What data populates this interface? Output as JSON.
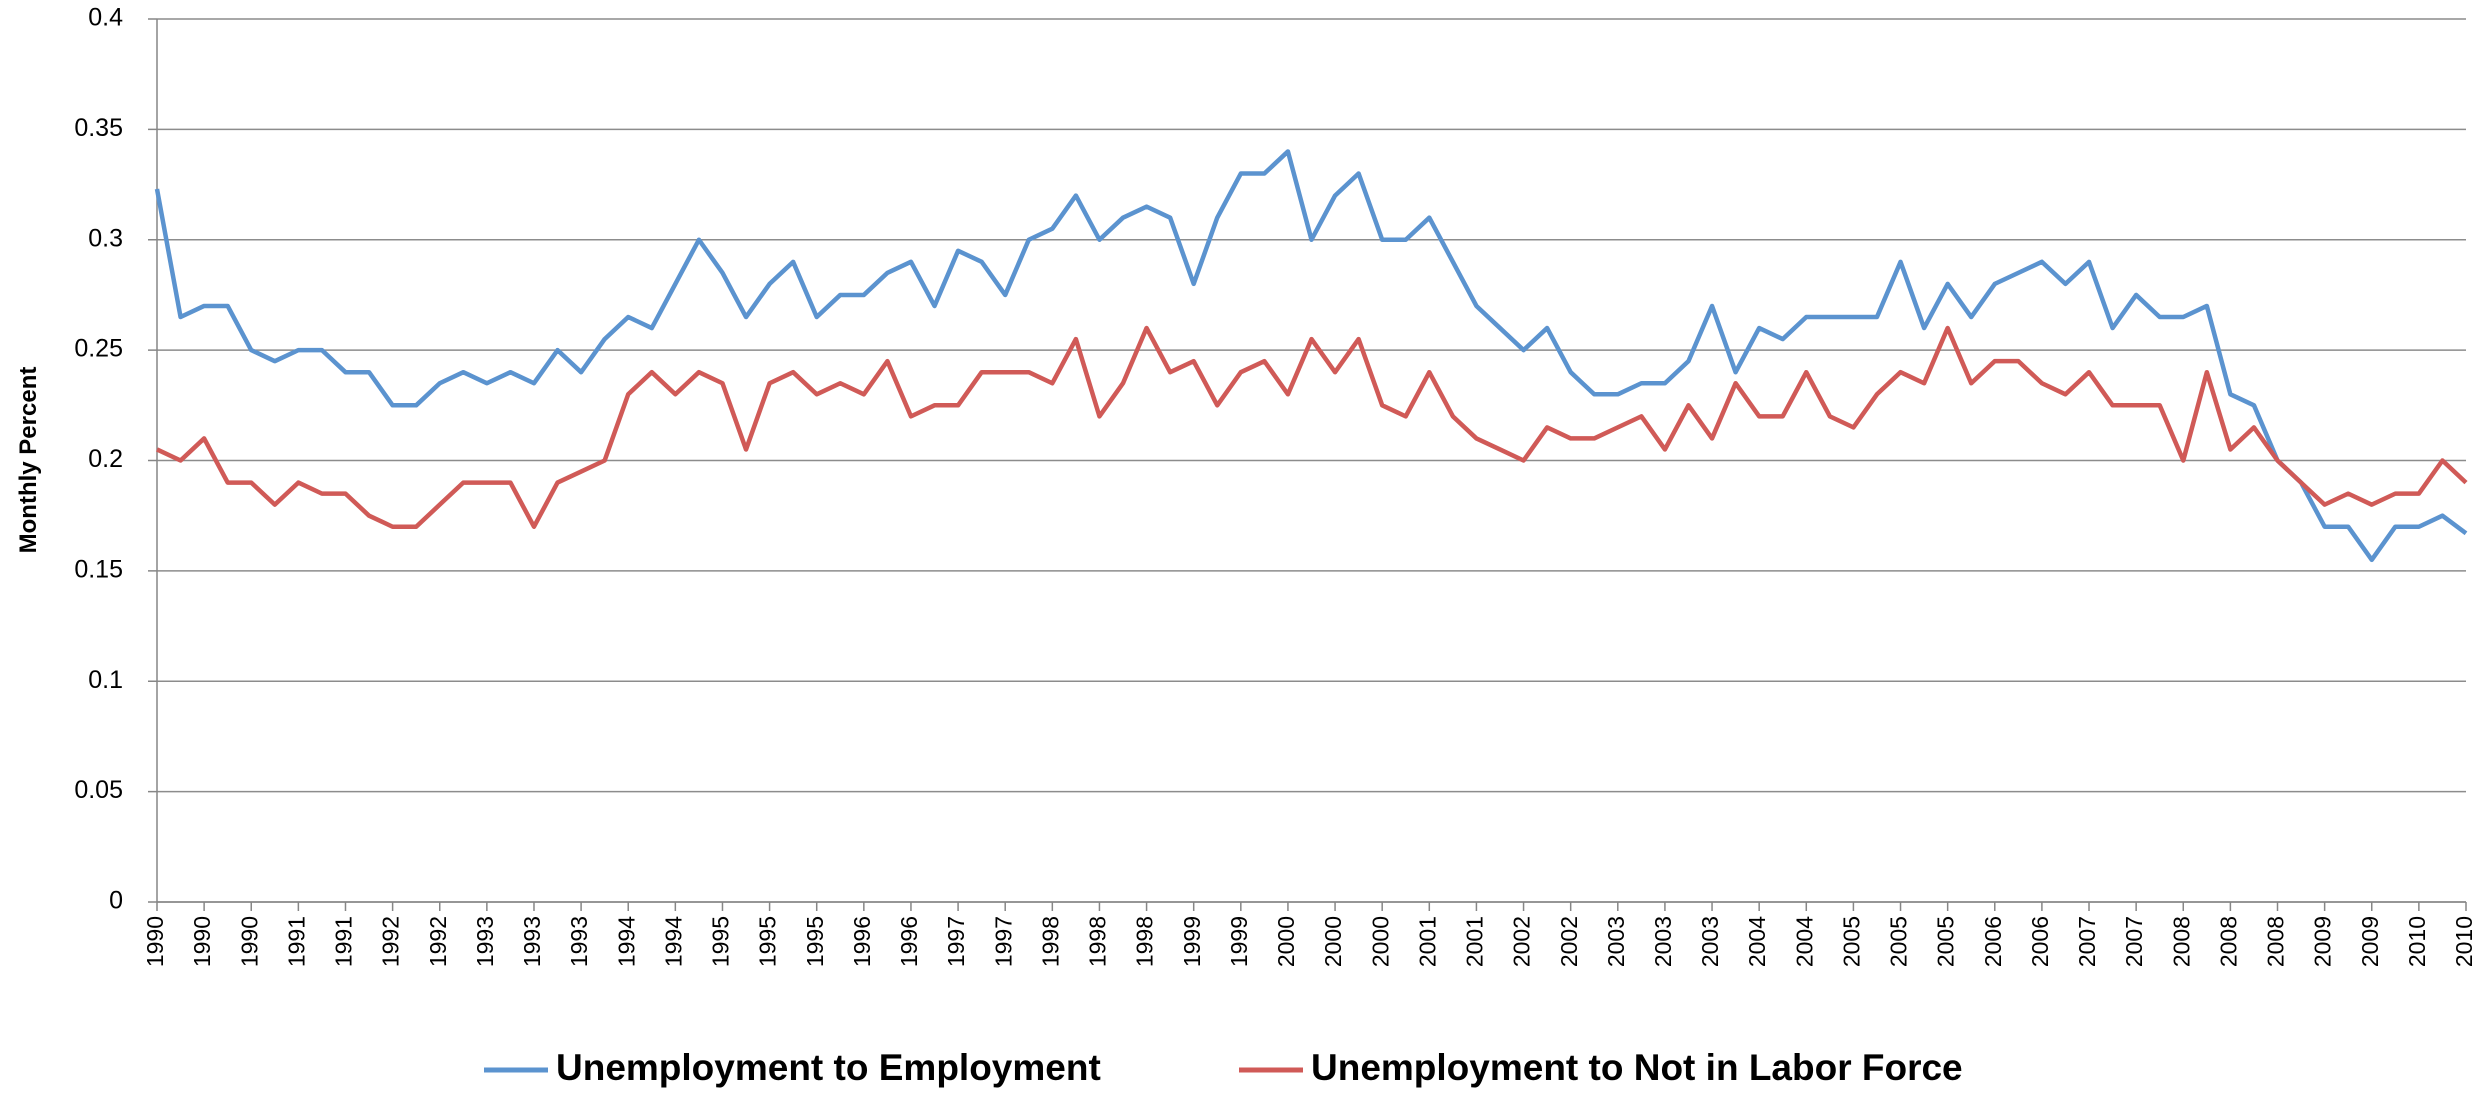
{
  "chart_data": {
    "type": "line",
    "y_axis_label": "Monthly Percent",
    "ylim": [
      0,
      0.4
    ],
    "yticks": [
      0,
      0.05,
      0.1,
      0.15,
      0.2,
      0.25,
      0.3,
      0.35,
      0.4
    ],
    "grid": true,
    "legend": "bottom",
    "categories": [
      "1990",
      null,
      "1990",
      null,
      "1990",
      null,
      "1991",
      null,
      "1991",
      null,
      "1992",
      null,
      "1992",
      null,
      "1993",
      null,
      "1993",
      null,
      "1993",
      null,
      "1994",
      null,
      "1994",
      null,
      "1995",
      null,
      "1995",
      null,
      "1995",
      null,
      "1996",
      null,
      "1996",
      null,
      "1997",
      null,
      "1997",
      null,
      "1998",
      null,
      "1998",
      null,
      "1998",
      null,
      "1999",
      null,
      "1999",
      null,
      "2000",
      null,
      "2000",
      null,
      "2000",
      null,
      "2001",
      null,
      "2001",
      null,
      "2002",
      null,
      "2002",
      null,
      "2003",
      null,
      "2003",
      null,
      "2003",
      null,
      "2004",
      null,
      "2004",
      null,
      "2005",
      null,
      "2005",
      null,
      "2005",
      null,
      "2006",
      null,
      "2006",
      null,
      "2007",
      null,
      "2007",
      null,
      "2008",
      null,
      "2008",
      null,
      "2008",
      null,
      "2009",
      null,
      "2009",
      null,
      "2010",
      null,
      "2010"
    ],
    "series": [
      {
        "name": "Unemployment to Employment",
        "color": "#5b93cf",
        "values": [
          0.323,
          0.265,
          0.27,
          0.27,
          0.25,
          0.245,
          0.25,
          0.25,
          0.24,
          0.24,
          0.225,
          0.225,
          0.235,
          0.24,
          0.235,
          0.24,
          0.235,
          0.25,
          0.24,
          0.255,
          0.265,
          0.26,
          0.28,
          0.3,
          0.285,
          0.265,
          0.28,
          0.29,
          0.265,
          0.275,
          0.275,
          0.285,
          0.29,
          0.27,
          0.295,
          0.29,
          0.275,
          0.3,
          0.305,
          0.32,
          0.3,
          0.31,
          0.315,
          0.31,
          0.28,
          0.31,
          0.33,
          0.33,
          0.34,
          0.3,
          0.32,
          0.33,
          0.3,
          0.3,
          0.31,
          0.29,
          0.27,
          0.26,
          0.25,
          0.26,
          0.24,
          0.23,
          0.23,
          0.235,
          0.235,
          0.245,
          0.27,
          0.24,
          0.26,
          0.255,
          0.265,
          0.265,
          0.265,
          0.265,
          0.29,
          0.26,
          0.28,
          0.265,
          0.28,
          0.285,
          0.29,
          0.28,
          0.29,
          0.26,
          0.275,
          0.265,
          0.265,
          0.27,
          0.23,
          0.225,
          0.2,
          0.19,
          0.17,
          0.17,
          0.155,
          0.17,
          0.17,
          0.175,
          0.167
        ]
      },
      {
        "name": "Unemployment to Not in Labor Force",
        "color": "#d05a57",
        "values": [
          0.205,
          0.2,
          0.21,
          0.19,
          0.19,
          0.18,
          0.19,
          0.185,
          0.185,
          0.175,
          0.17,
          0.17,
          0.18,
          0.19,
          0.19,
          0.19,
          0.17,
          0.19,
          0.195,
          0.2,
          0.23,
          0.24,
          0.23,
          0.24,
          0.235,
          0.205,
          0.235,
          0.24,
          0.23,
          0.235,
          0.23,
          0.245,
          0.22,
          0.225,
          0.225,
          0.24,
          0.24,
          0.24,
          0.235,
          0.255,
          0.22,
          0.235,
          0.26,
          0.24,
          0.245,
          0.225,
          0.24,
          0.245,
          0.23,
          0.255,
          0.24,
          0.255,
          0.225,
          0.22,
          0.24,
          0.22,
          0.21,
          0.205,
          0.2,
          0.215,
          0.21,
          0.21,
          0.215,
          0.22,
          0.205,
          0.225,
          0.21,
          0.235,
          0.22,
          0.22,
          0.24,
          0.22,
          0.215,
          0.23,
          0.24,
          0.235,
          0.26,
          0.235,
          0.245,
          0.245,
          0.235,
          0.23,
          0.24,
          0.225,
          0.225,
          0.225,
          0.2,
          0.24,
          0.205,
          0.215,
          0.2,
          0.19,
          0.18,
          0.185,
          0.18,
          0.185,
          0.185,
          0.2,
          0.19
        ]
      }
    ]
  }
}
